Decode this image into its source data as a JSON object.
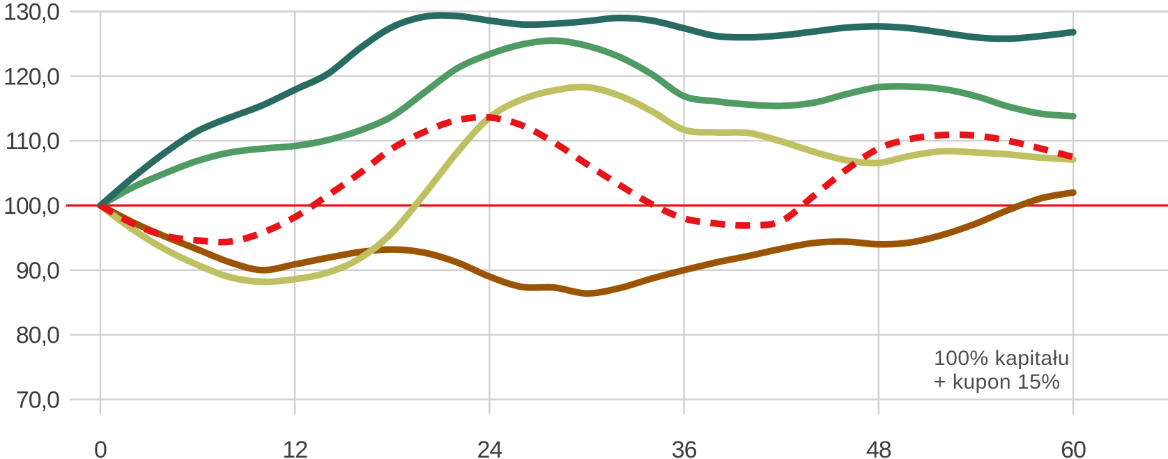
{
  "chart": {
    "annotation": {
      "line1": "100% kapitału",
      "line2": "+ kupon 15%"
    },
    "colors": {
      "grid": "#d2d2d2",
      "axis_text": "#3d3d3d",
      "annotation_text": "#4d4d4d",
      "reference_red": "#e71318"
    },
    "chart_data": {
      "type": "line",
      "title": "",
      "xlabel": "",
      "ylabel": "",
      "x_ticks": [
        0,
        12,
        24,
        36,
        48,
        60
      ],
      "y_ticks": [
        130,
        120,
        110,
        100,
        90,
        80,
        70
      ],
      "y_tick_labels": [
        "130,0",
        "120,0",
        "110,0",
        "100,0",
        "90,0",
        "80,0",
        "70,0"
      ],
      "xlim": [
        0,
        60
      ],
      "ylim": [
        70,
        130
      ],
      "grid": true,
      "legend_position": "none",
      "reference_line": {
        "value": 100,
        "style": "solid-thin",
        "color": "#e71318"
      },
      "x_step": 2,
      "x": [
        0,
        2,
        4,
        6,
        8,
        10,
        12,
        14,
        16,
        18,
        20,
        22,
        24,
        26,
        28,
        30,
        32,
        34,
        36,
        38,
        40,
        42,
        44,
        46,
        48,
        50,
        52,
        54,
        56,
        58,
        60
      ],
      "series": [
        {
          "id": "brown-line",
          "color": "#9b5404",
          "dashed": false,
          "values": [
            100,
            97.4,
            95.2,
            93.2,
            91.2,
            90.0,
            90.9,
            91.9,
            92.8,
            93.2,
            92.7,
            91.2,
            89.0,
            87.4,
            87.3,
            86.4,
            87.2,
            88.7,
            90.0,
            91.2,
            92.2,
            93.3,
            94.2,
            94.4,
            94.0,
            94.3,
            95.5,
            97.2,
            99.3,
            101.1,
            102.0
          ]
        },
        {
          "id": "olive-line",
          "color": "#bfc061",
          "dashed": false,
          "values": [
            100,
            96.3,
            93.2,
            90.8,
            88.9,
            88.2,
            88.6,
            89.6,
            91.8,
            95.8,
            101.8,
            108.2,
            113.6,
            116.4,
            117.8,
            118.3,
            117.0,
            114.6,
            111.7,
            111.3,
            111.2,
            109.9,
            108.3,
            107.0,
            106.6,
            107.7,
            108.4,
            108.2,
            107.9,
            107.4,
            107.1
          ]
        },
        {
          "id": "green-line",
          "color": "#4f9b63",
          "dashed": false,
          "values": [
            100,
            102.8,
            105.0,
            106.9,
            108.2,
            108.8,
            109.2,
            110.1,
            111.6,
            113.8,
            117.5,
            121.2,
            123.4,
            124.9,
            125.5,
            124.7,
            123.0,
            120.3,
            116.9,
            116.1,
            115.6,
            115.4,
            115.9,
            117.2,
            118.3,
            118.4,
            118.0,
            116.9,
            115.3,
            114.2,
            113.8
          ]
        },
        {
          "id": "teal-line",
          "color": "#276b62",
          "dashed": false,
          "values": [
            100,
            104.3,
            108.2,
            111.5,
            113.6,
            115.5,
            117.9,
            120.3,
            124.3,
            127.6,
            129.2,
            129.3,
            128.6,
            128.0,
            128.1,
            128.5,
            129.0,
            128.6,
            127.4,
            126.2,
            126.0,
            126.3,
            126.9,
            127.5,
            127.7,
            127.4,
            126.7,
            126.0,
            125.8,
            126.2,
            126.8
          ]
        },
        {
          "id": "red-dashed-line",
          "color": "#e71318",
          "dashed": true,
          "values": [
            100,
            97.2,
            95.3,
            94.6,
            94.4,
            95.8,
            98.2,
            101.5,
            105.0,
            108.8,
            111.4,
            113.2,
            113.6,
            112.4,
            109.7,
            106.4,
            103.2,
            100.2,
            98.0,
            97.2,
            96.9,
            97.6,
            101.5,
            105.5,
            108.8,
            110.3,
            110.9,
            110.8,
            110.0,
            108.8,
            107.5
          ]
        }
      ]
    }
  }
}
